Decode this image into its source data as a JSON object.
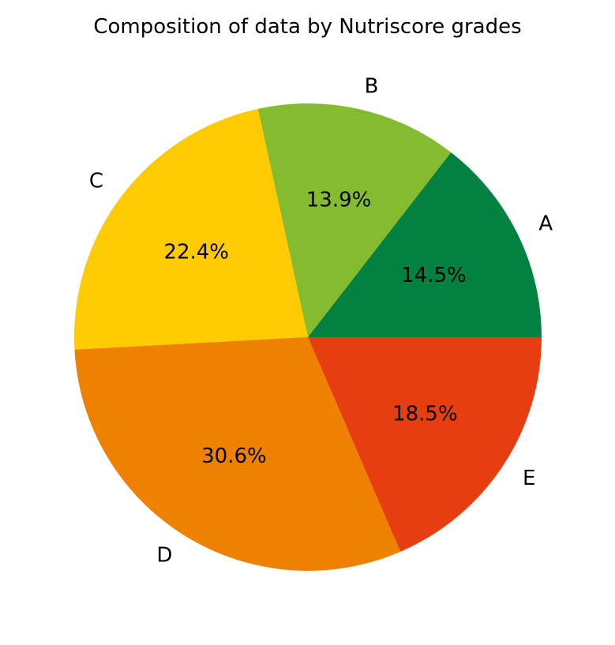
{
  "chart_data": {
    "type": "pie",
    "title": "Composition of data by Nutriscore grades",
    "start_angle_deg": 0,
    "direction": "counterclockwise",
    "slices": [
      {
        "label": "A",
        "value": 14.5,
        "pct_label": "14.5%",
        "color": "#038141"
      },
      {
        "label": "B",
        "value": 13.9,
        "pct_label": "13.9%",
        "color": "#85BB2F"
      },
      {
        "label": "C",
        "value": 22.4,
        "pct_label": "22.4%",
        "color": "#FECB02"
      },
      {
        "label": "D",
        "value": 30.6,
        "pct_label": "30.6%",
        "color": "#EE8100"
      },
      {
        "label": "E",
        "value": 18.5,
        "pct_label": "18.5%",
        "color": "#E63E11"
      }
    ]
  }
}
